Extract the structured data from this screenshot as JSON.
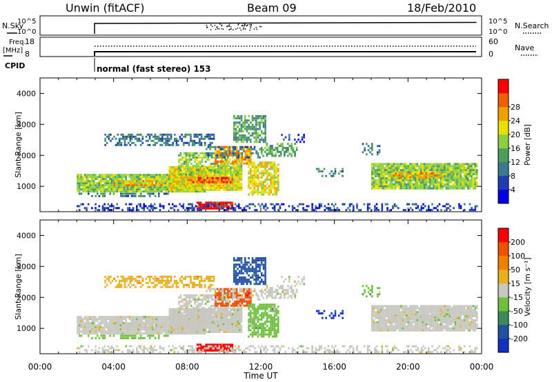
{
  "header": {
    "title": "Unwin (fitACF)",
    "beam": "Beam 09",
    "date": "18/Feb/2010"
  },
  "nsky_panel": {
    "label_left": "N.Sky",
    "left_ticks": [
      "10^5",
      "10^0"
    ],
    "right_ticks": [
      "10^5",
      "10^0"
    ],
    "label_right": "N.Search"
  },
  "freq_panel": {
    "label_left_1": "Freq.",
    "label_left_2": "[MHz]",
    "left_ticks": [
      "18",
      "8"
    ],
    "right_ticks": [
      "60",
      "0"
    ],
    "label_right": "Nave"
  },
  "cpid_panel": {
    "label": "CPID",
    "mode_text": "normal (fast stereo) 153"
  },
  "chart_data": [
    {
      "type": "heatmap",
      "ylabel": "Slant Range [km]",
      "yticks": [
        "1000",
        "2000",
        "3000",
        "4000"
      ],
      "ylim": [
        180,
        4500
      ],
      "xlim": [
        0,
        24
      ],
      "colorbar": {
        "label": "Power [dB]",
        "ticks": [
          "4",
          "8",
          "12",
          "16",
          "20",
          "24",
          "28"
        ],
        "range": [
          0,
          32
        ],
        "colors": [
          "#0000e6",
          "#1e3cb4",
          "#3c7890",
          "#4c9c5c",
          "#8ad040",
          "#e8e000",
          "#f0a000",
          "#f06000",
          "#ff0000"
        ]
      }
    },
    {
      "type": "heatmap",
      "ylabel": "Slant Range [km]",
      "yticks": [
        "1000",
        "2000",
        "3000",
        "4000"
      ],
      "ylim": [
        180,
        4500
      ],
      "xlim": [
        0,
        24
      ],
      "xlabel": "Time UT",
      "xticks": [
        "00:00",
        "04:00",
        "08:00",
        "12:00",
        "16:00",
        "20:00",
        "00:00"
      ],
      "colorbar": {
        "label": "Velocity [m s⁻¹]",
        "ticks": [
          "200",
          "100",
          "50",
          "15",
          "-15",
          "-50",
          "-100",
          "-200"
        ],
        "colors": [
          "#1030c0",
          "#2050a0",
          "#3c8a5c",
          "#70c040",
          "#c8c8c0",
          "#e8b020",
          "#f08000",
          "#f05000",
          "#ff0000"
        ]
      }
    }
  ]
}
